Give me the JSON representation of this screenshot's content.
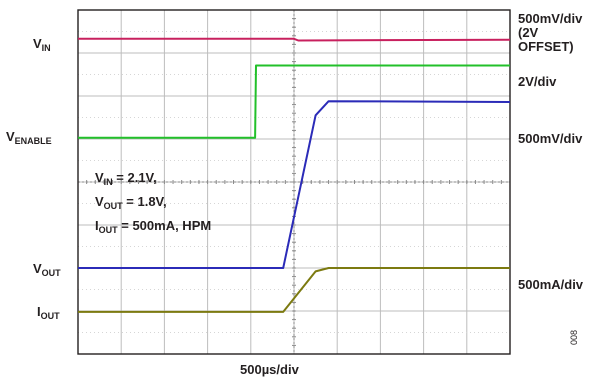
{
  "chart_data": {
    "type": "line",
    "x_unit": "div",
    "x_range": [
      0,
      10
    ],
    "y_range": [
      0,
      8
    ],
    "horizontal_divisions": 10,
    "vertical_divisions": 8,
    "grid": true,
    "timebase": "500µs/div",
    "series": [
      {
        "color": "#c8205e",
        "points": [
          [
            0,
            7.33
          ],
          [
            5,
            7.33
          ],
          [
            5.1,
            7.29
          ],
          [
            10,
            7.31
          ]
        ]
      },
      {
        "color": "#22c02a",
        "points": [
          [
            0,
            5.03
          ],
          [
            4.1,
            5.03
          ],
          [
            4.12,
            6.71
          ],
          [
            10,
            6.71
          ]
        ]
      },
      {
        "color": "#2b2bb8",
        "points": [
          [
            0,
            2.0
          ],
          [
            4.75,
            2.0
          ],
          [
            5.5,
            5.55
          ],
          [
            5.8,
            5.88
          ],
          [
            10,
            5.86
          ]
        ]
      },
      {
        "color": "#7c7a10",
        "points": [
          [
            0,
            0.98
          ],
          [
            4.75,
            0.98
          ],
          [
            5.5,
            1.92
          ],
          [
            5.8,
            2.0
          ],
          [
            10,
            2.0
          ]
        ]
      }
    ],
    "annotations": {
      "vin": {
        "main": "V",
        "sub": "IN"
      },
      "venable": {
        "main": "V",
        "sub": "ENABLE"
      },
      "vout": {
        "main": "V",
        "sub": "OUT"
      },
      "iout": {
        "main": "I",
        "sub": "OUT"
      }
    },
    "conditions": [
      {
        "main": "V",
        "sub": "IN",
        "rest": " = 2.1V,"
      },
      {
        "main": "V",
        "sub": "OUT",
        "rest": " = 1.8V,"
      },
      {
        "main": "I",
        "sub": "OUT",
        "rest": " = 500mA, HPM"
      }
    ],
    "scales": [
      "500mV/div",
      "(2V",
      "OFFSET)",
      "2V/div",
      "500mV/div",
      "500mA/div"
    ],
    "figure_number": "008"
  }
}
